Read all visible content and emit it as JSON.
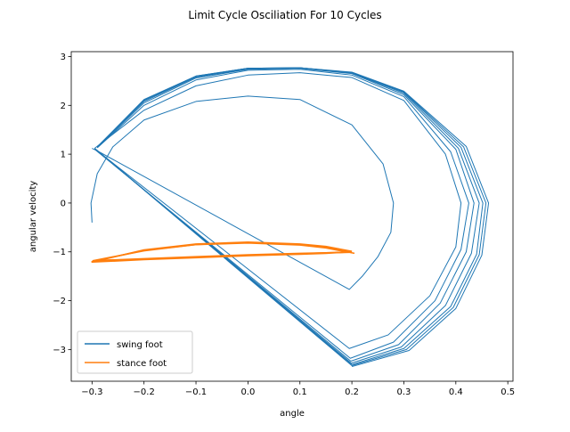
{
  "chart_data": {
    "type": "line",
    "title": "Limit Cycle Osciliation For 10 Cycles",
    "xlabel": "angle",
    "ylabel": "angular velocity",
    "xlim": [
      -0.34,
      0.51
    ],
    "ylim": [
      -3.65,
      3.1
    ],
    "x_ticks": [
      -0.3,
      -0.2,
      -0.1,
      0.0,
      0.1,
      0.2,
      0.3,
      0.4,
      0.5
    ],
    "x_tick_labels": [
      "−0.3",
      "−0.2",
      "−0.1",
      "0.0",
      "0.1",
      "0.2",
      "0.3",
      "0.4",
      "0.5"
    ],
    "y_ticks": [
      -3,
      -2,
      -1,
      0,
      1,
      2,
      3
    ],
    "y_tick_labels": [
      "−3",
      "−2",
      "−1",
      "0",
      "1",
      "2",
      "3"
    ],
    "grid": false,
    "legend_position": "lower-left",
    "series": [
      {
        "name": "swing foot",
        "color": "#1f77b4",
        "cycles": [
          {
            "x": [
              -0.3,
              -0.302,
              -0.29,
              -0.26,
              -0.2,
              -0.1,
              0.0,
              0.1,
              0.2,
              0.26,
              0.28,
              0.275,
              0.25,
              0.22,
              0.195,
              -0.29,
              -0.3
            ],
            "y": [
              -0.4,
              0.0,
              0.6,
              1.15,
              1.7,
              2.08,
              2.19,
              2.12,
              1.6,
              0.8,
              0.0,
              -0.6,
              -1.1,
              -1.5,
              -1.77,
              1.07,
              1.12
            ]
          },
          {
            "x": [
              -0.295,
              -0.2,
              -0.1,
              0.0,
              0.1,
              0.2,
              0.3,
              0.38,
              0.41,
              0.4,
              0.35,
              0.27,
              0.195,
              -0.29
            ],
            "y": [
              1.12,
              1.9,
              2.4,
              2.62,
              2.67,
              2.57,
              2.1,
              1.0,
              0.0,
              -0.9,
              -1.9,
              -2.7,
              -2.98,
              1.07
            ]
          },
          {
            "x": [
              -0.29,
              -0.2,
              -0.1,
              0.0,
              0.1,
              0.2,
              0.3,
              0.39,
              0.425,
              0.41,
              0.36,
              0.28,
              0.197,
              -0.295
            ],
            "y": [
              1.13,
              2.0,
              2.52,
              2.72,
              2.74,
              2.62,
              2.18,
              1.05,
              0.0,
              -0.95,
              -2.0,
              -2.85,
              -3.18,
              1.1
            ]
          },
          {
            "x": [
              -0.29,
              -0.2,
              -0.1,
              0.0,
              0.1,
              0.2,
              0.3,
              0.4,
              0.435,
              0.42,
              0.37,
              0.29,
              0.198,
              -0.295
            ],
            "y": [
              1.14,
              2.05,
              2.56,
              2.74,
              2.76,
              2.65,
              2.22,
              1.1,
              0.0,
              -1.0,
              -2.05,
              -2.9,
              -3.24,
              1.11
            ]
          },
          {
            "x": [
              -0.29,
              -0.2,
              -0.1,
              0.0,
              0.1,
              0.2,
              0.3,
              0.405,
              0.445,
              0.43,
              0.38,
              0.295,
              0.199,
              -0.295
            ],
            "y": [
              1.15,
              2.08,
              2.58,
              2.75,
              2.77,
              2.66,
              2.25,
              1.12,
              0.0,
              -1.03,
              -2.1,
              -2.95,
              -3.28,
              1.12
            ]
          },
          {
            "x": [
              -0.29,
              -0.2,
              -0.1,
              0.0,
              0.1,
              0.2,
              0.3,
              0.41,
              0.452,
              0.44,
              0.39,
              0.3,
              0.2,
              -0.295
            ],
            "y": [
              1.15,
              2.1,
              2.59,
              2.76,
              2.77,
              2.67,
              2.27,
              1.14,
              0.0,
              -1.05,
              -2.12,
              -2.98,
              -3.31,
              1.12
            ]
          },
          {
            "x": [
              -0.29,
              -0.2,
              -0.1,
              0.0,
              0.1,
              0.2,
              0.3,
              0.415,
              0.458,
              0.445,
              0.395,
              0.305,
              0.2,
              -0.295
            ],
            "y": [
              1.15,
              2.11,
              2.6,
              2.76,
              2.77,
              2.67,
              2.28,
              1.15,
              0.0,
              -1.06,
              -2.14,
              -3.0,
              -3.33,
              1.12
            ]
          },
          {
            "x": [
              -0.29,
              -0.2,
              -0.1,
              0.0,
              0.1,
              0.2,
              0.3,
              0.42,
              0.463,
              0.45,
              0.4,
              0.31,
              0.2
            ],
            "y": [
              1.15,
              2.12,
              2.6,
              2.76,
              2.77,
              2.68,
              2.29,
              1.16,
              0.0,
              -1.07,
              -2.16,
              -3.02,
              -3.35
            ]
          }
        ]
      },
      {
        "name": "stance foot",
        "color": "#ff7f0e",
        "cycles": [
          {
            "x": [
              0.205,
              0.15,
              0.1,
              0.0,
              -0.1,
              -0.2,
              -0.298,
              -0.2,
              -0.1,
              0.0,
              0.1,
              0.15,
              0.195
            ],
            "y": [
              -1.03,
              -0.92,
              -0.86,
              -0.82,
              -0.85,
              -0.98,
              -1.18,
              -1.14,
              -1.1,
              -1.06,
              -1.03,
              -1.02,
              -1.01
            ]
          },
          {
            "x": [
              0.195,
              0.15,
              0.1,
              0.0,
              -0.1,
              -0.2,
              -0.3,
              -0.2,
              -0.1,
              0.0,
              0.1,
              0.15,
              0.2
            ],
            "y": [
              -1.0,
              -0.9,
              -0.85,
              -0.81,
              -0.85,
              -0.97,
              -1.2,
              -1.15,
              -1.11,
              -1.07,
              -1.04,
              -1.02,
              -1.0
            ]
          },
          {
            "x": [
              0.2,
              0.15,
              0.1,
              0.0,
              -0.1,
              -0.2,
              -0.3,
              -0.2,
              -0.1,
              0.0,
              0.1,
              0.15,
              0.2
            ],
            "y": [
              -0.99,
              -0.89,
              -0.84,
              -0.8,
              -0.84,
              -0.96,
              -1.21,
              -1.16,
              -1.12,
              -1.08,
              -1.05,
              -1.03,
              -1.0
            ]
          }
        ]
      }
    ]
  }
}
